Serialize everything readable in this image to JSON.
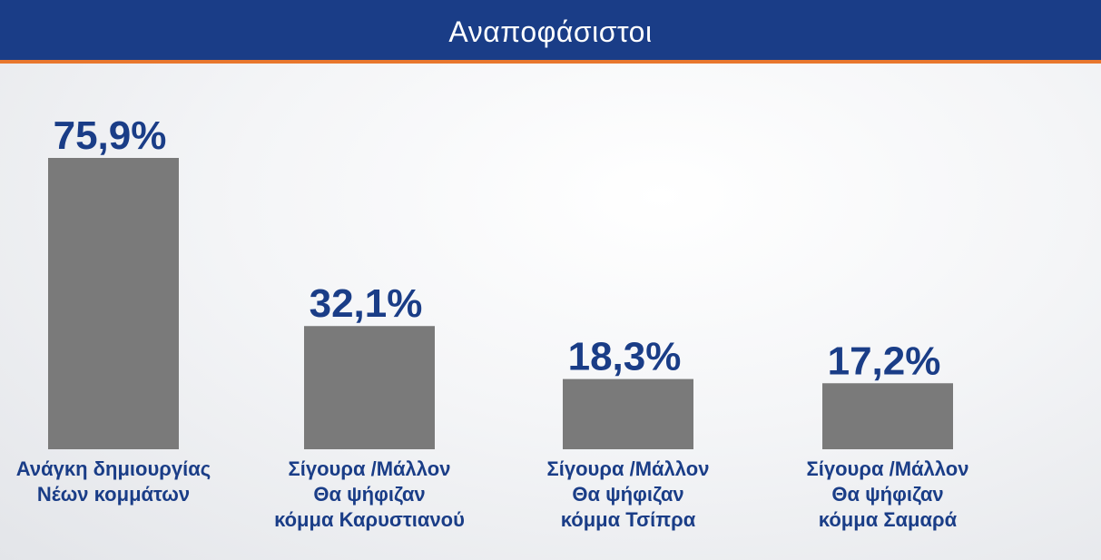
{
  "header": {
    "title": "Αναποφάσιστοι"
  },
  "chart_data": {
    "type": "bar",
    "title": "Αναποφάσιστοι",
    "xlabel": "",
    "ylabel": "",
    "categories": [
      [
        "Ανάγκη δημιουργίας",
        "Νέων κομμάτων"
      ],
      [
        "Σίγουρα /Μάλλον",
        "Θα ψήφιζαν",
        "κόμμα Καρυστιανού"
      ],
      [
        "Σίγουρα /Μάλλον",
        "Θα ψήφιζαν",
        "κόμμα Τσίπρα"
      ],
      [
        "Σίγουρα /Μάλλον",
        "Θα ψήφιζαν",
        "κόμμα Σαμαρά"
      ]
    ],
    "values": [
      75.9,
      32.1,
      18.3,
      17.2
    ],
    "value_labels": [
      "75,9%",
      "32,1%",
      "18,3%",
      "17,2%"
    ],
    "axes_visible": false,
    "grid": false,
    "legend": "none",
    "colors": {
      "bar": "#7a7a7a",
      "value_label": "#1a3d87",
      "category_label": "#1a3d87",
      "header": "#1a3d87",
      "header_rule": "#e8772e"
    }
  }
}
